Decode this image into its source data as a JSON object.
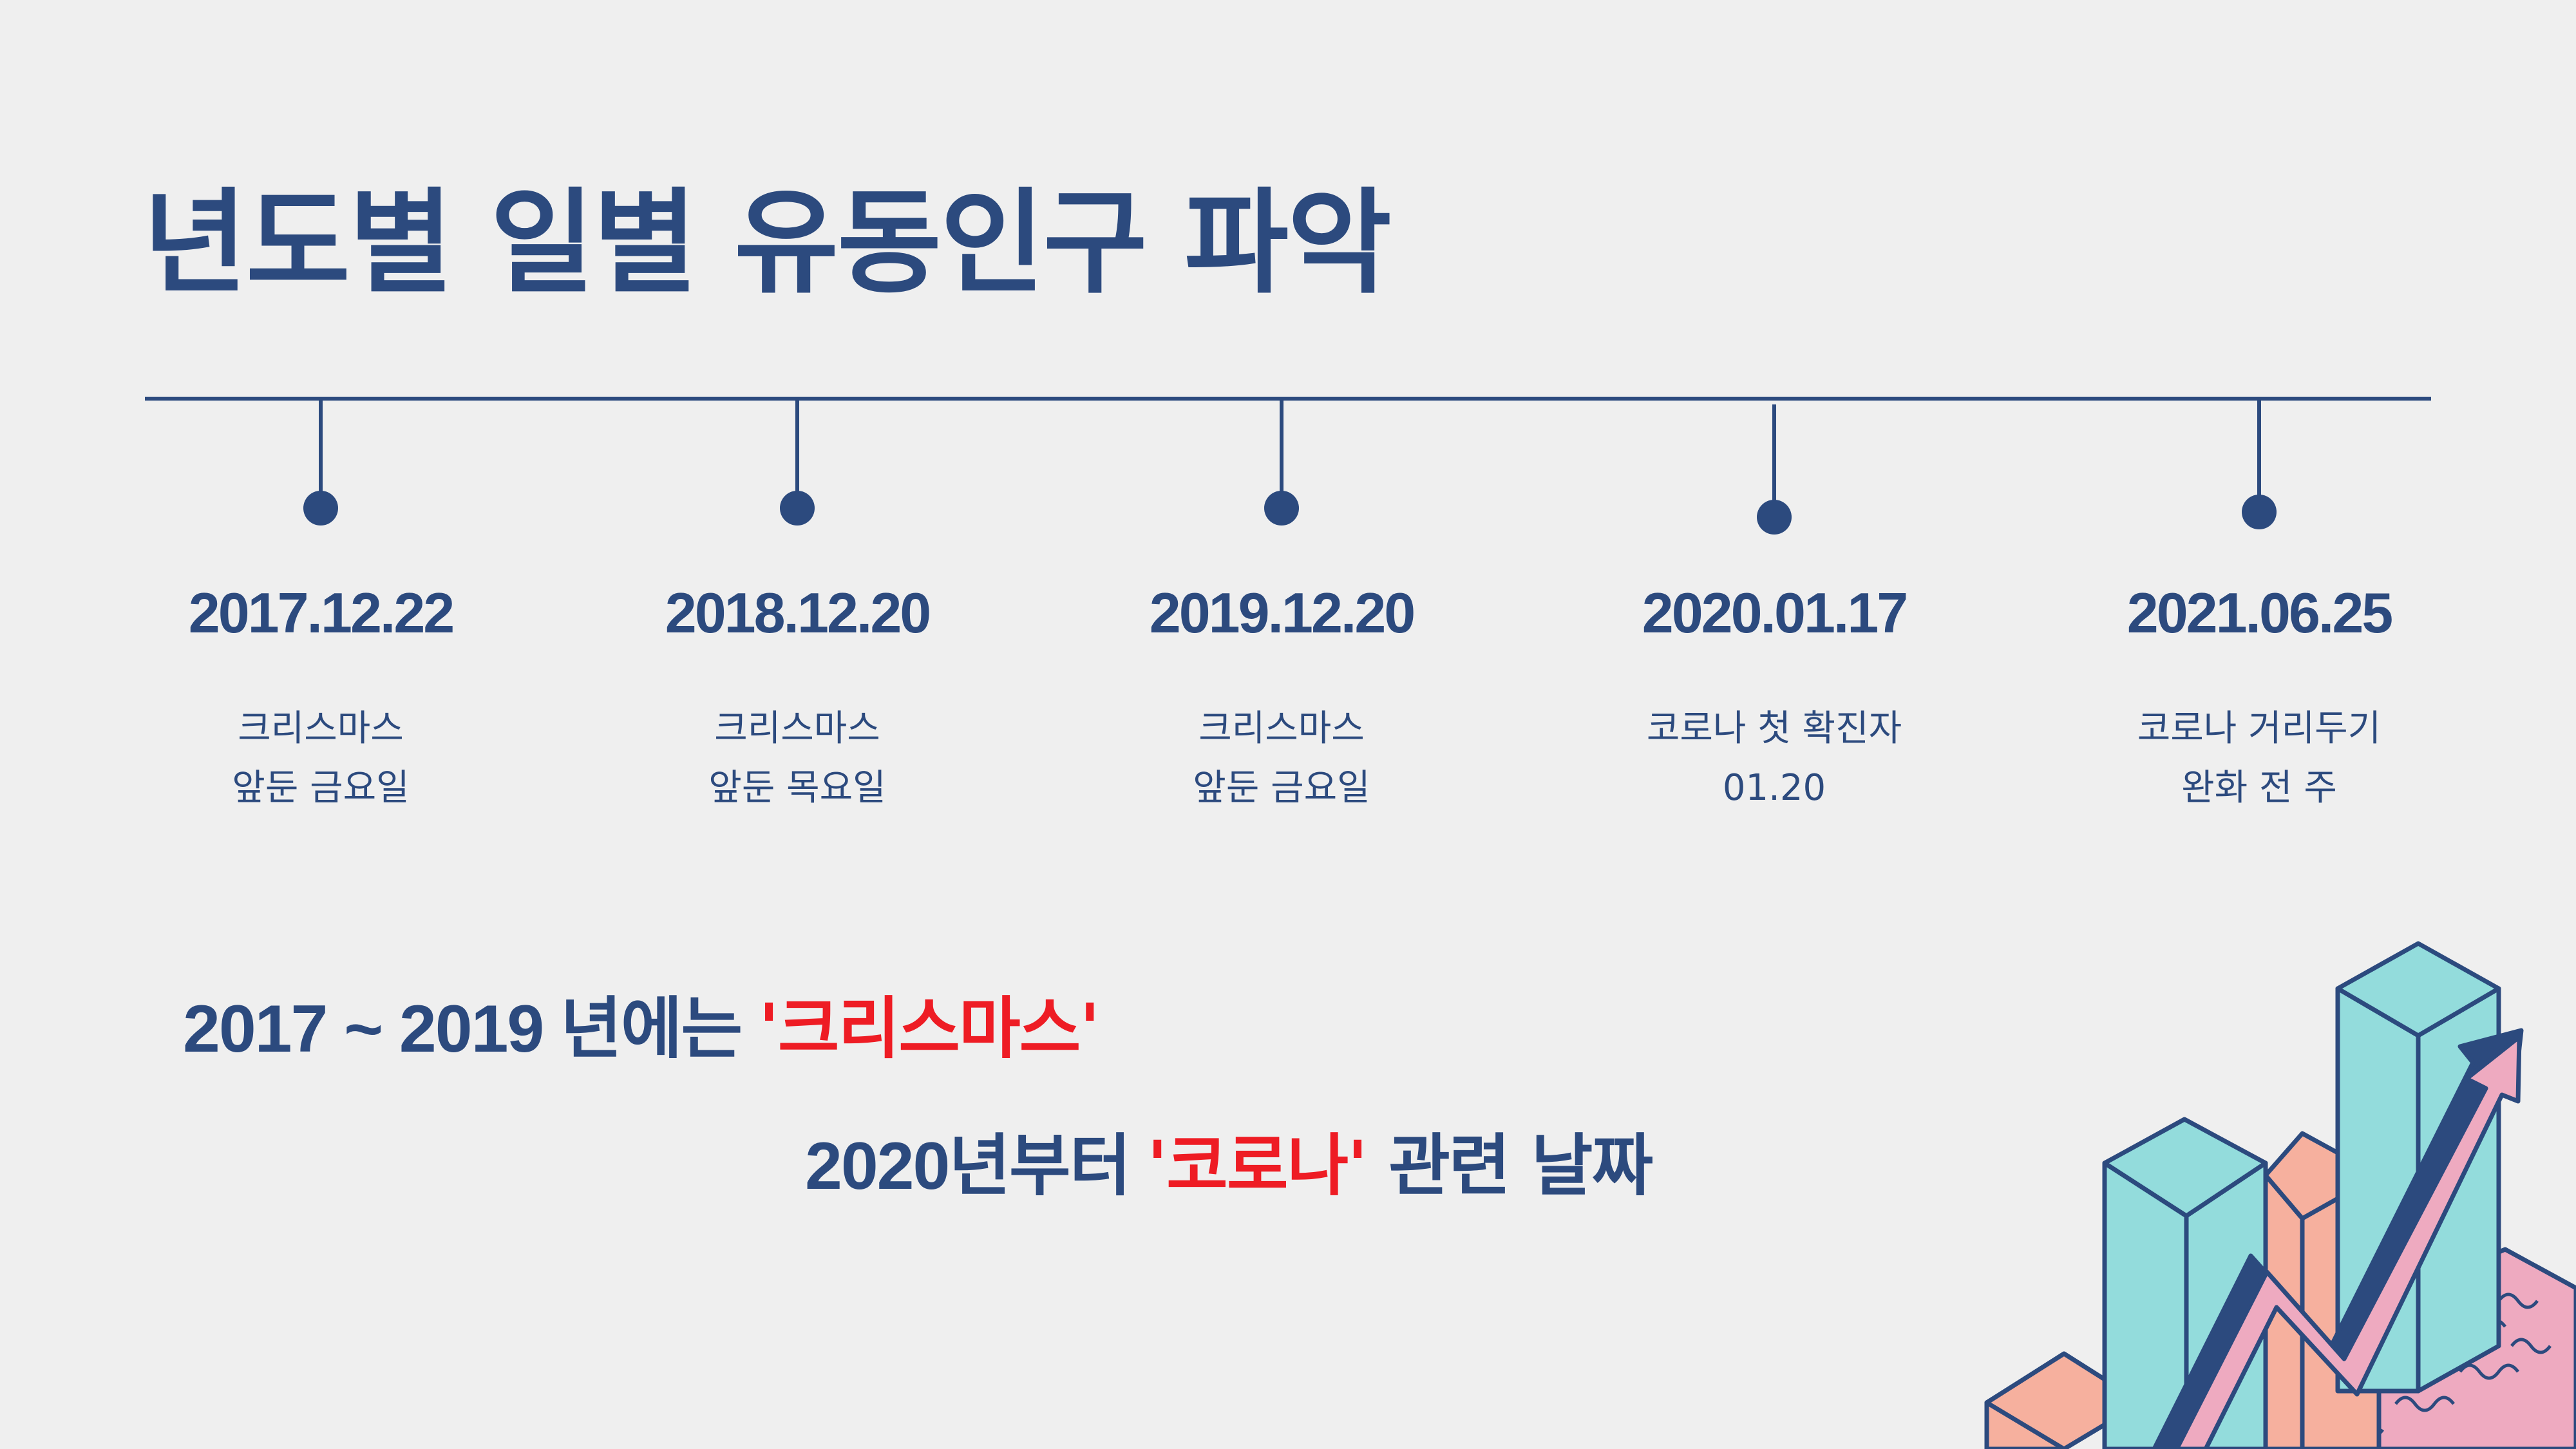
{
  "title": "년도별 일별 유동인구 파악",
  "timeline": [
    {
      "date": "2017.12.22",
      "line1": "크리스마스",
      "line2": "앞둔 금요일"
    },
    {
      "date": "2018.12.20",
      "line1": "크리스마스",
      "line2": "앞둔 목요일"
    },
    {
      "date": "2019.12.20",
      "line1": "크리스마스",
      "line2": "앞둔 금요일"
    },
    {
      "date": "2020.01.17",
      "line1": "코로나 첫 확진자",
      "line2": "01.20"
    },
    {
      "date": "2021.06.25",
      "line1": "코로나 거리두기",
      "line2": "완화 전 주"
    }
  ],
  "summary": {
    "line1_prefix": "2017 ~ 2019 년에는 ",
    "line1_highlight": "'크리스마스'",
    "line2_prefix": "2020년부터  ",
    "line2_highlight": "'코로나'",
    "line2_suffix": " 관련 날짜"
  },
  "colors": {
    "primary": "#2c4a7e",
    "highlight": "#ee1c24",
    "background": "#efefef",
    "teal": "#93dcdc",
    "salmon": "#f6b09e",
    "pink": "#eeaac0"
  },
  "illustration_icon": "isometric-bar-chart-growth-icon"
}
